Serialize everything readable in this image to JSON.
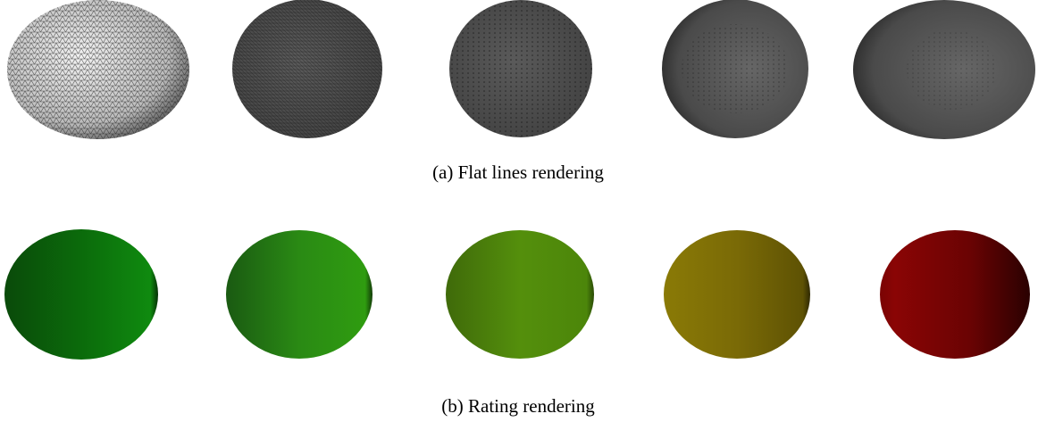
{
  "captions": {
    "a": "(a) Flat lines rendering",
    "b": "(b) Rating rendering"
  }
}
